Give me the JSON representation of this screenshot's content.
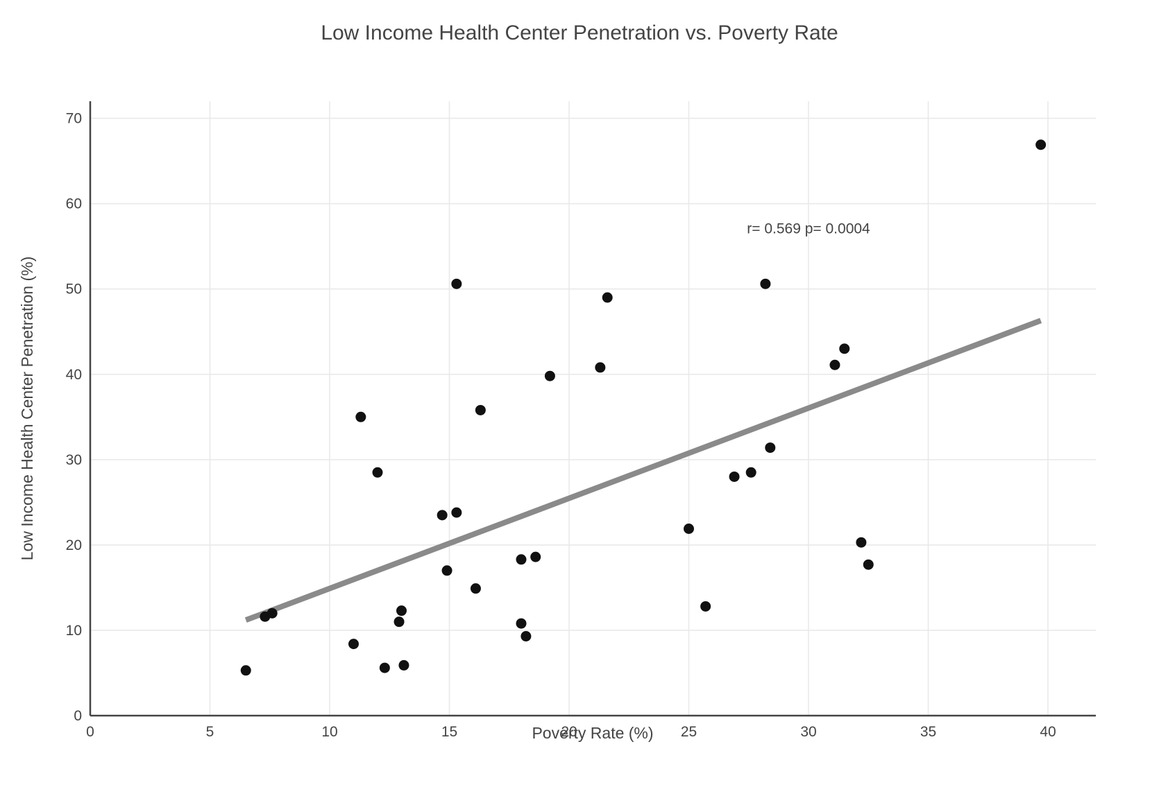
{
  "chart_data": {
    "type": "scatter",
    "title": "Low Income Health Center Penetration vs. Poverty Rate",
    "xlabel": "Poverty Rate (%)",
    "ylabel": "Low Income Health Center Penetration (%)",
    "xlim": [
      0,
      42
    ],
    "ylim": [
      0,
      72
    ],
    "x_ticks": [
      0,
      5,
      10,
      15,
      20,
      25,
      30,
      35,
      40
    ],
    "y_ticks": [
      0,
      10,
      20,
      30,
      40,
      50,
      60,
      70
    ],
    "grid": true,
    "legend": "none",
    "annotation": {
      "text": "r= 0.569 p= 0.0004",
      "x": 30,
      "y": 56.5
    },
    "points": [
      [
        6.5,
        5.3
      ],
      [
        7.3,
        11.6
      ],
      [
        7.6,
        12.0
      ],
      [
        11.0,
        8.4
      ],
      [
        11.3,
        35.0
      ],
      [
        12.0,
        28.5
      ],
      [
        12.3,
        5.6
      ],
      [
        12.9,
        11.0
      ],
      [
        13.0,
        12.3
      ],
      [
        13.1,
        5.9
      ],
      [
        14.7,
        23.5
      ],
      [
        14.9,
        17.0
      ],
      [
        15.3,
        23.8
      ],
      [
        15.3,
        50.6
      ],
      [
        16.1,
        14.9
      ],
      [
        16.3,
        35.8
      ],
      [
        18.0,
        10.8
      ],
      [
        18.0,
        18.3
      ],
      [
        18.2,
        9.3
      ],
      [
        18.6,
        18.6
      ],
      [
        19.2,
        39.8
      ],
      [
        21.3,
        40.8
      ],
      [
        21.6,
        49.0
      ],
      [
        25.0,
        21.9
      ],
      [
        25.7,
        12.8
      ],
      [
        26.9,
        28.0
      ],
      [
        27.6,
        28.5
      ],
      [
        28.2,
        50.6
      ],
      [
        28.4,
        31.4
      ],
      [
        31.1,
        41.1
      ],
      [
        31.5,
        43.0
      ],
      [
        32.2,
        20.3
      ],
      [
        32.5,
        17.7
      ],
      [
        39.7,
        66.9
      ]
    ],
    "trendline": {
      "x1": 6.5,
      "y1": 11.2,
      "x2": 39.7,
      "y2": 46.3
    },
    "colors": {
      "point": "#111111",
      "trend": "#8a8a8a",
      "grid": "#e9e9e9",
      "axis": "#444444",
      "text": "#444444",
      "background": "#ffffff"
    }
  }
}
